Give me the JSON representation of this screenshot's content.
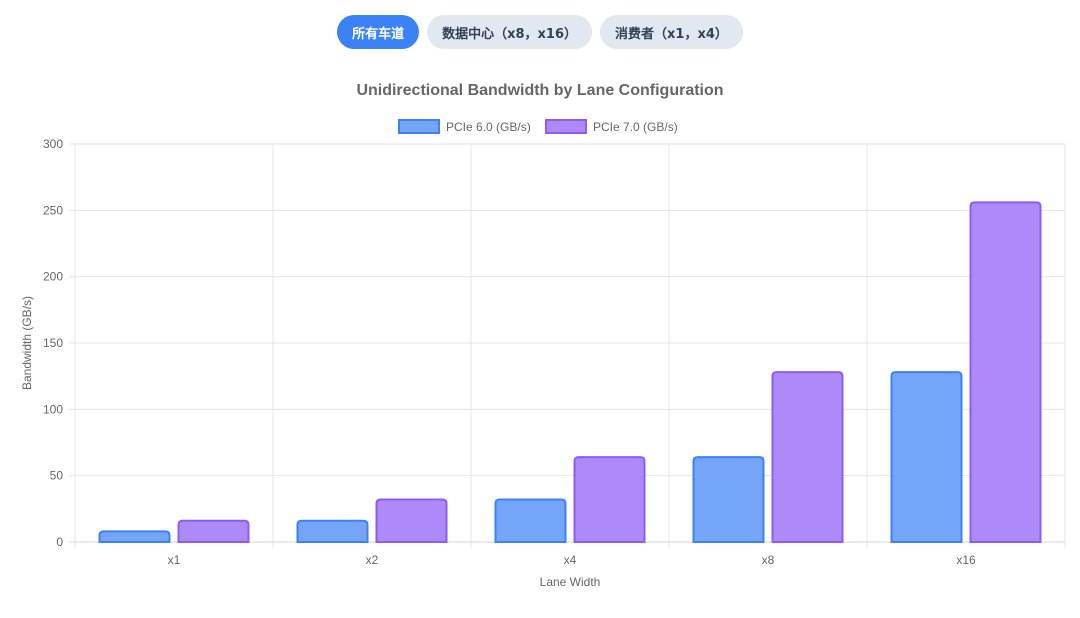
{
  "filters": {
    "all": "所有车道",
    "datacenter": "数据中心（x8，x16）",
    "consumer": "消费者（x1，x4）"
  },
  "colors": {
    "pill_active": "#3b82f6",
    "pill_inactive": "#e2e8f0",
    "series_6_fill": "#75a5f8",
    "series_6_stroke": "#3b82f6",
    "series_7_fill": "#ad8af8",
    "series_7_stroke": "#8b5cf6"
  },
  "chart_data": {
    "type": "bar",
    "title": "Unidirectional Bandwidth by Lane Configuration",
    "xlabel": "Lane Width",
    "ylabel": "Bandwidth (GB/s)",
    "categories": [
      "x1",
      "x2",
      "x4",
      "x8",
      "x16"
    ],
    "series": [
      {
        "name": "PCIe 6.0 (GB/s)",
        "values": [
          8,
          16,
          32,
          64,
          128
        ]
      },
      {
        "name": "PCIe 7.0 (GB/s)",
        "values": [
          16,
          32,
          64,
          128,
          256
        ]
      }
    ],
    "ylim": [
      0,
      300
    ],
    "yticks": [
      0,
      50,
      100,
      150,
      200,
      250,
      300
    ],
    "grid": true,
    "legend": "top"
  }
}
